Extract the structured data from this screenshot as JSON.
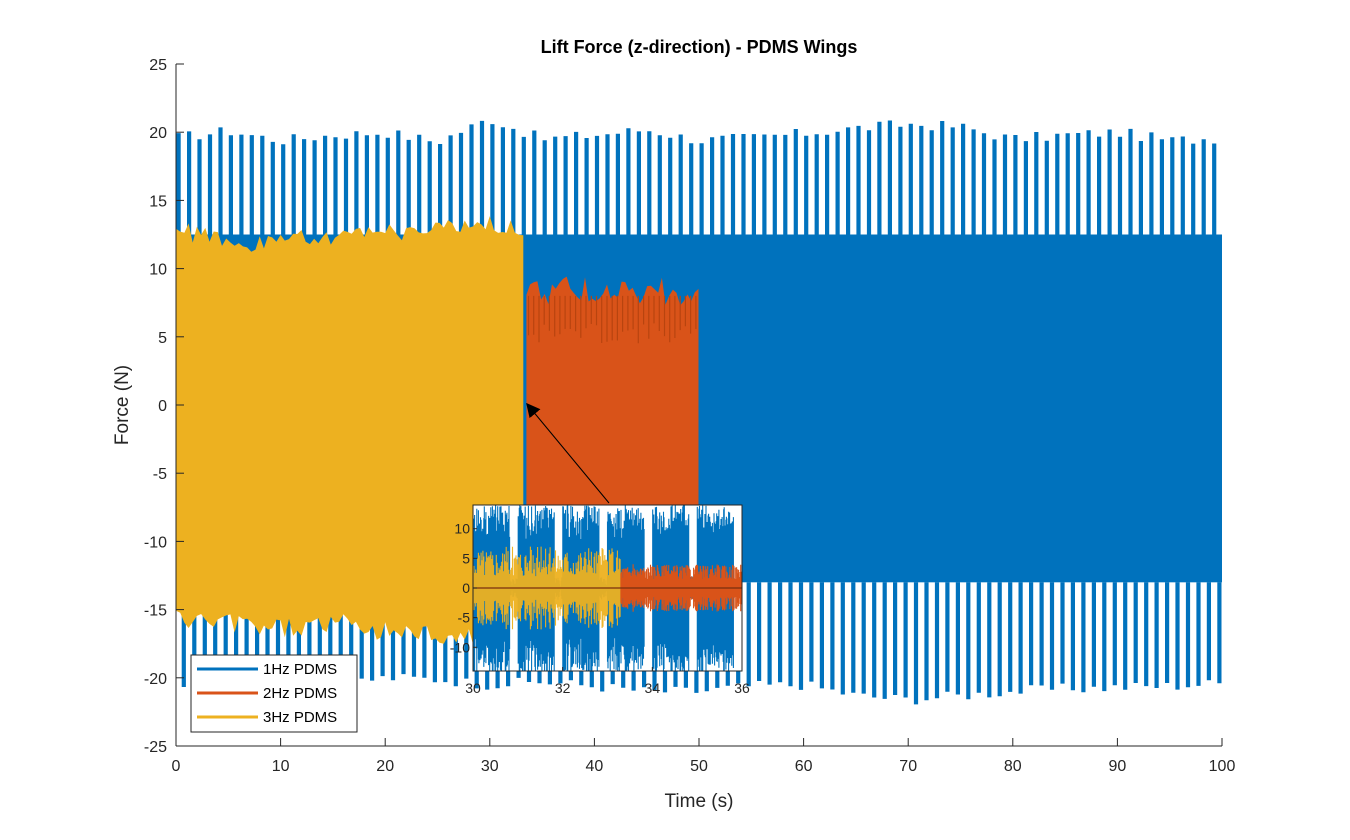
{
  "chart_data": [
    {
      "type": "line",
      "title": "Lift Force (z-direction) - PDMS Wings",
      "xlabel": "Time (s)",
      "ylabel": "Force (N)",
      "xlim": [
        0,
        100
      ],
      "ylim": [
        -25,
        25
      ],
      "xticks": [
        0,
        10,
        20,
        30,
        40,
        50,
        60,
        70,
        80,
        90,
        100
      ],
      "yticks": [
        -25,
        -20,
        -15,
        -10,
        -5,
        0,
        5,
        10,
        15,
        20,
        25
      ],
      "grid": false,
      "legend_position": "bottom-left",
      "series": [
        {
          "name": "1Hz PDMS",
          "color": "#0072BD",
          "x_range": [
            0,
            100
          ],
          "peak_max": [
            19.6,
            20.1,
            19.4,
            19.8,
            20.0,
            19.3,
            21.0,
            19.5,
            19.8,
            20.2,
            19.4,
            19.6,
            19.9,
            20.3,
            20.6,
            20.4,
            19.5,
            19.8,
            20.0,
            19.4,
            19.6
          ],
          "band_upper": [
            12.5,
            12.5,
            12.5,
            12.5,
            12.5,
            12.5,
            12.5,
            12.5,
            12.5,
            12.5,
            12.5,
            12.5,
            12.5,
            12.5,
            12.5,
            12.5,
            12.5,
            12.5,
            12.5,
            12.5,
            12.5
          ],
          "band_lower": [
            -13,
            -13,
            -13,
            -13,
            -13,
            -13,
            -13,
            -13,
            -13,
            -13,
            -13,
            -13,
            -13,
            -13,
            -13,
            -13,
            -13,
            -13,
            -13,
            -13,
            -13
          ],
          "peak_min": [
            -20.5,
            -20.2,
            -20.0,
            -20.5,
            -20.0,
            -20.1,
            -20.5,
            -20.3,
            -20.6,
            -21.0,
            -21.0,
            -20.6,
            -20.5,
            -21.3,
            -21.6,
            -21.3,
            -21.0,
            -20.8,
            -20.7,
            -20.6,
            -20.4
          ]
        },
        {
          "name": "2Hz PDMS",
          "color": "#D95319",
          "x_range": [
            33.5,
            50
          ],
          "upper": 9.5,
          "lower": -10
        },
        {
          "name": "3Hz PDMS",
          "color": "#EDB120",
          "x_range": [
            0,
            33.5
          ],
          "upper": [
            13.5,
            13.0,
            12.5,
            13.0,
            12.8,
            13.2,
            13.5,
            13.8,
            14.2,
            13.2
          ],
          "lower": [
            -16.5,
            -16.8,
            -17.0,
            -17.2,
            -16.8,
            -17.2,
            -17.5,
            -17.8,
            -18.0,
            -18.2
          ]
        }
      ]
    },
    {
      "type": "line",
      "title": "",
      "xlim": [
        30,
        36
      ],
      "ylim": [
        -14,
        14
      ],
      "xticks": [
        30,
        32,
        34,
        36
      ],
      "yticks": [
        -10,
        -5,
        0,
        5,
        10
      ],
      "ytick_labels": [
        "-10",
        "-5",
        "0",
        "5",
        "10"
      ],
      "series": [
        {
          "name": "1Hz PDMS",
          "color": "#0072BD",
          "x_range": [
            30,
            36
          ]
        },
        {
          "name": "2Hz PDMS",
          "color": "#D95319",
          "x_range": [
            33.3,
            36
          ]
        },
        {
          "name": "3Hz PDMS",
          "color": "#EDB120",
          "x_range": [
            30,
            33.3
          ]
        }
      ]
    }
  ]
}
